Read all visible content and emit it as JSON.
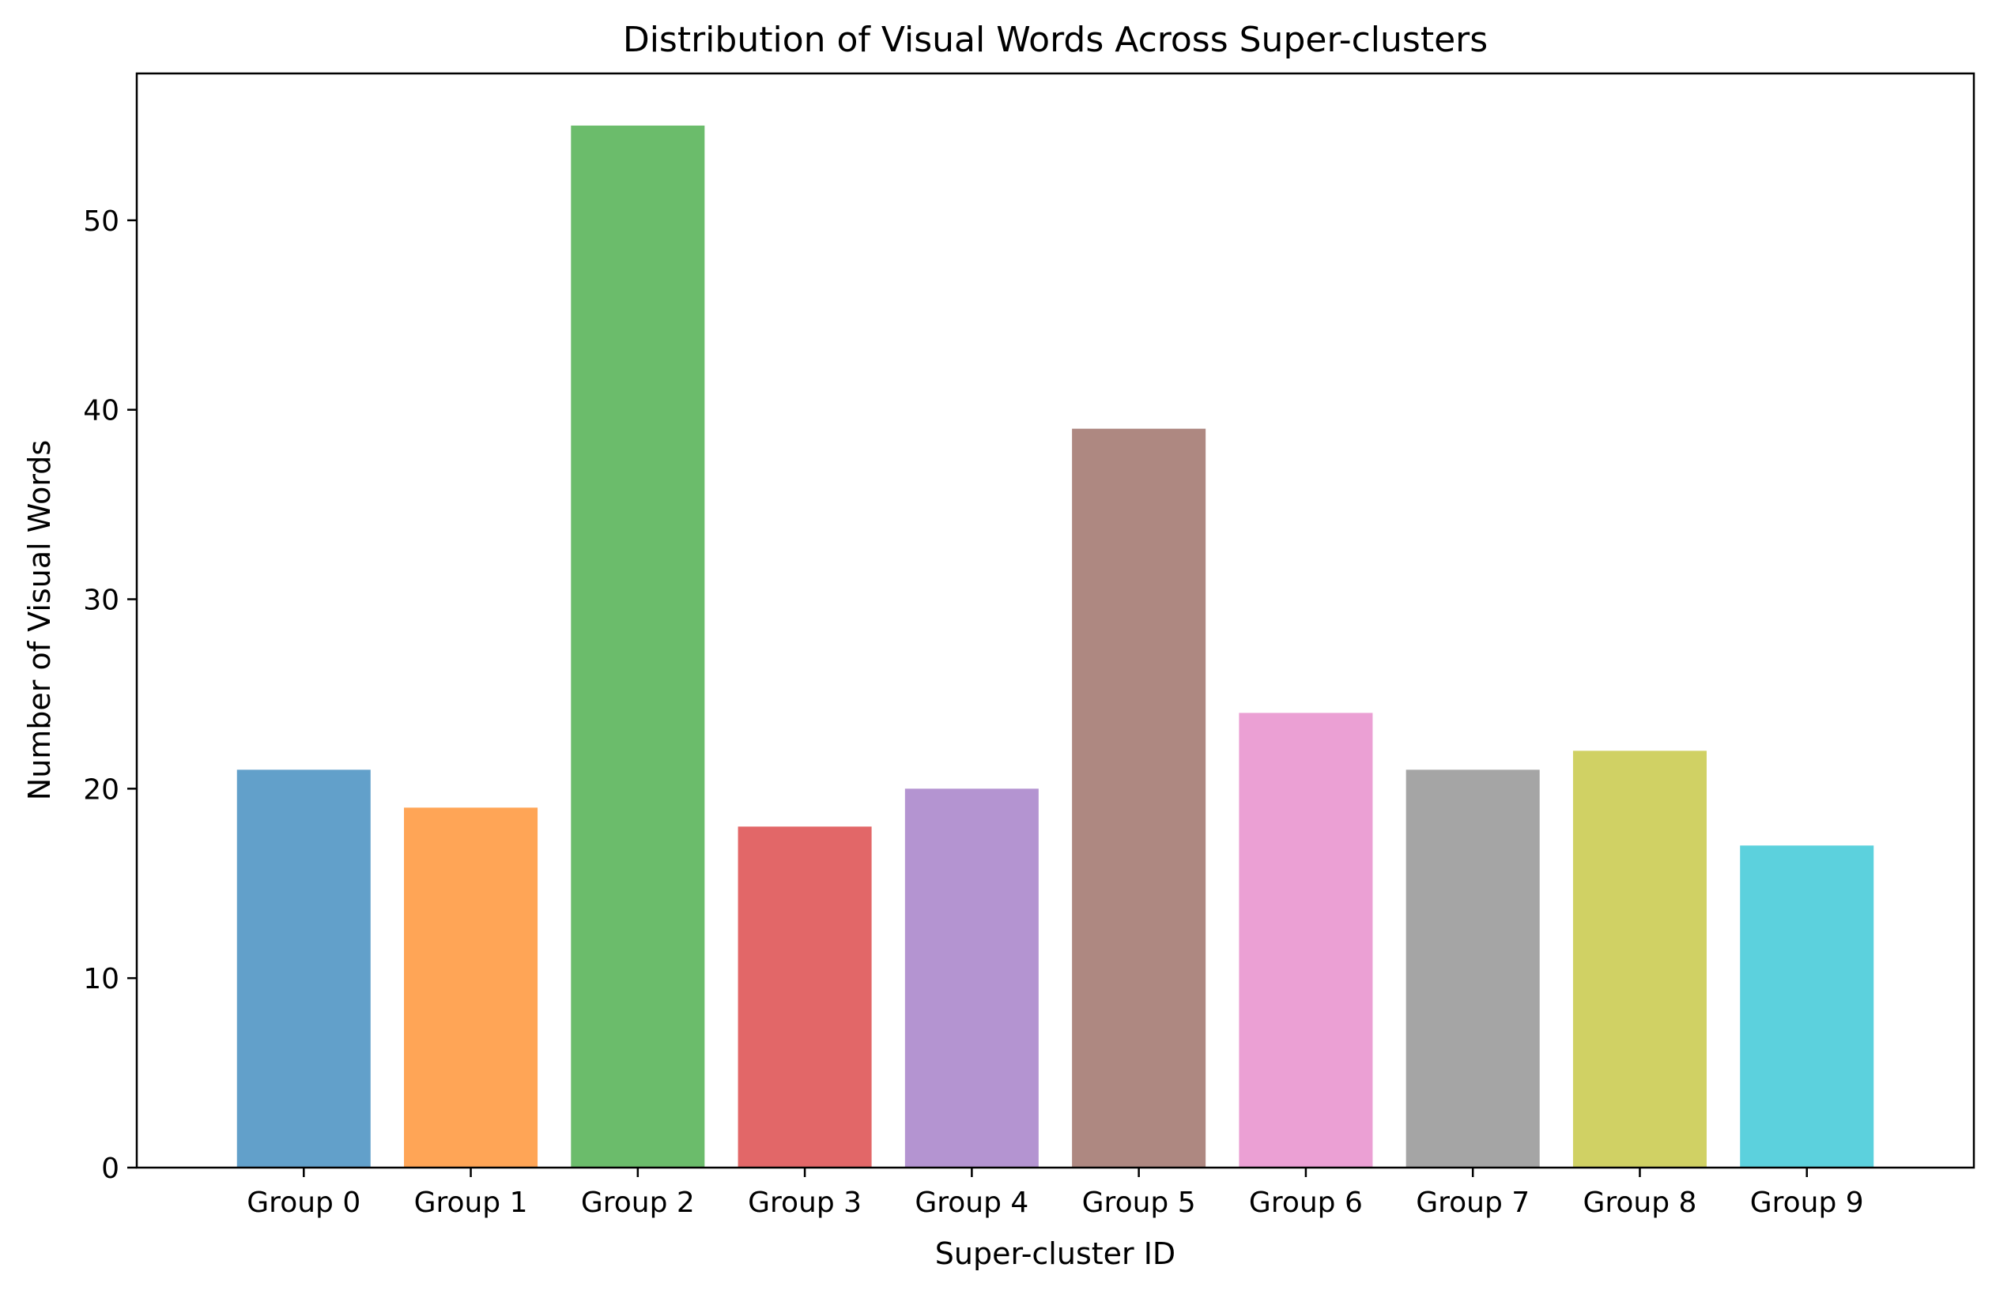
{
  "chart_data": {
    "type": "bar",
    "title": "Distribution of Visual Words Across Super-clusters",
    "xlabel": "Super-cluster ID",
    "ylabel": "Number of Visual Words",
    "categories": [
      "Group 0",
      "Group 1",
      "Group 2",
      "Group 3",
      "Group 4",
      "Group 5",
      "Group 6",
      "Group 7",
      "Group 8",
      "Group 9"
    ],
    "values": [
      21,
      19,
      55,
      18,
      20,
      39,
      24,
      21,
      22,
      17
    ],
    "colors": [
      "#1f77b4",
      "#ff7f0e",
      "#2ca02c",
      "#d62728",
      "#9467bd",
      "#8c564b",
      "#e377c2",
      "#7f7f7f",
      "#bcbd22",
      "#17becf"
    ],
    "bar_opacity": 0.7,
    "ylim": [
      0,
      57.75
    ],
    "yticks": [
      0,
      10,
      20,
      30,
      40,
      50
    ],
    "grid": false,
    "legend": "none"
  }
}
